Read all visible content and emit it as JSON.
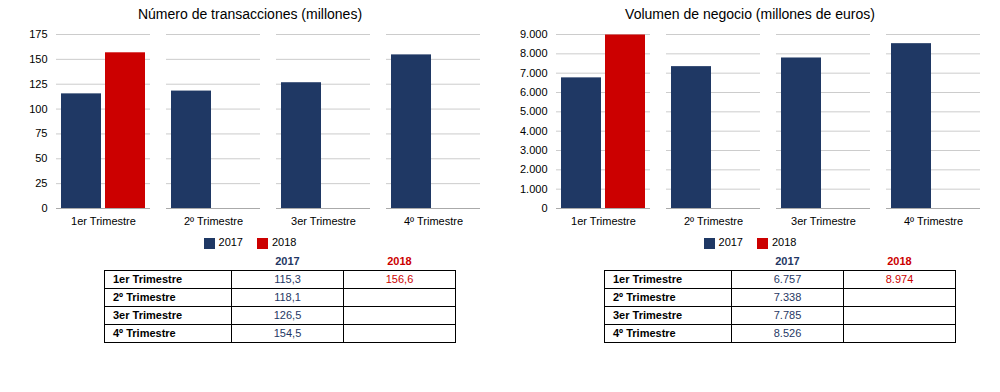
{
  "chart_data": [
    {
      "type": "bar",
      "title": "Número de transacciones (millones)",
      "categories": [
        "1er Trimestre",
        "2º Trimestre",
        "3er Trimestre",
        "4º Trimestre"
      ],
      "series": [
        {
          "name": "2017",
          "color": "#1f3864",
          "values": [
            115.3,
            118.1,
            126.5,
            154.5
          ],
          "value_labels": [
            "115,3",
            "118,1",
            "126,5",
            "154,5"
          ]
        },
        {
          "name": "2018",
          "color": "#cc0000",
          "values": [
            156.6,
            null,
            null,
            null
          ],
          "value_labels": [
            "156,6",
            null,
            null,
            null
          ]
        }
      ],
      "ylim": [
        0,
        175
      ],
      "yticks": [
        0,
        25,
        50,
        75,
        100,
        125,
        150,
        175
      ],
      "grid": true,
      "legend": "bottom"
    },
    {
      "type": "bar",
      "title": "Volumen de negocio (millones de euros)",
      "categories": [
        "1er Trimestre",
        "2º Trimestre",
        "3er Trimestre",
        "4º Trimestre"
      ],
      "series": [
        {
          "name": "2017",
          "color": "#1f3864",
          "values": [
            6757,
            7338,
            7785,
            8526
          ],
          "value_labels": [
            "6.757",
            "7.338",
            "7.785",
            "8.526"
          ]
        },
        {
          "name": "2018",
          "color": "#cc0000",
          "values": [
            8974,
            null,
            null,
            null
          ],
          "value_labels": [
            "8.974",
            null,
            null,
            null
          ]
        }
      ],
      "ylim": [
        0,
        9000
      ],
      "yticks": [
        0,
        {
          "value": 1000,
          "label": "1.000"
        },
        {
          "value": 2000,
          "label": "2.000"
        },
        {
          "value": 3000,
          "label": "3.000"
        },
        {
          "value": 4000,
          "label": "4.000"
        },
        {
          "value": 5000,
          "label": "5.000"
        },
        {
          "value": 6000,
          "label": "6.000"
        },
        {
          "value": 7000,
          "label": "7.000"
        },
        {
          "value": 8000,
          "label": "8.000"
        },
        {
          "value": 9000,
          "label": "9.000"
        }
      ],
      "grid": true,
      "legend": "bottom"
    }
  ]
}
